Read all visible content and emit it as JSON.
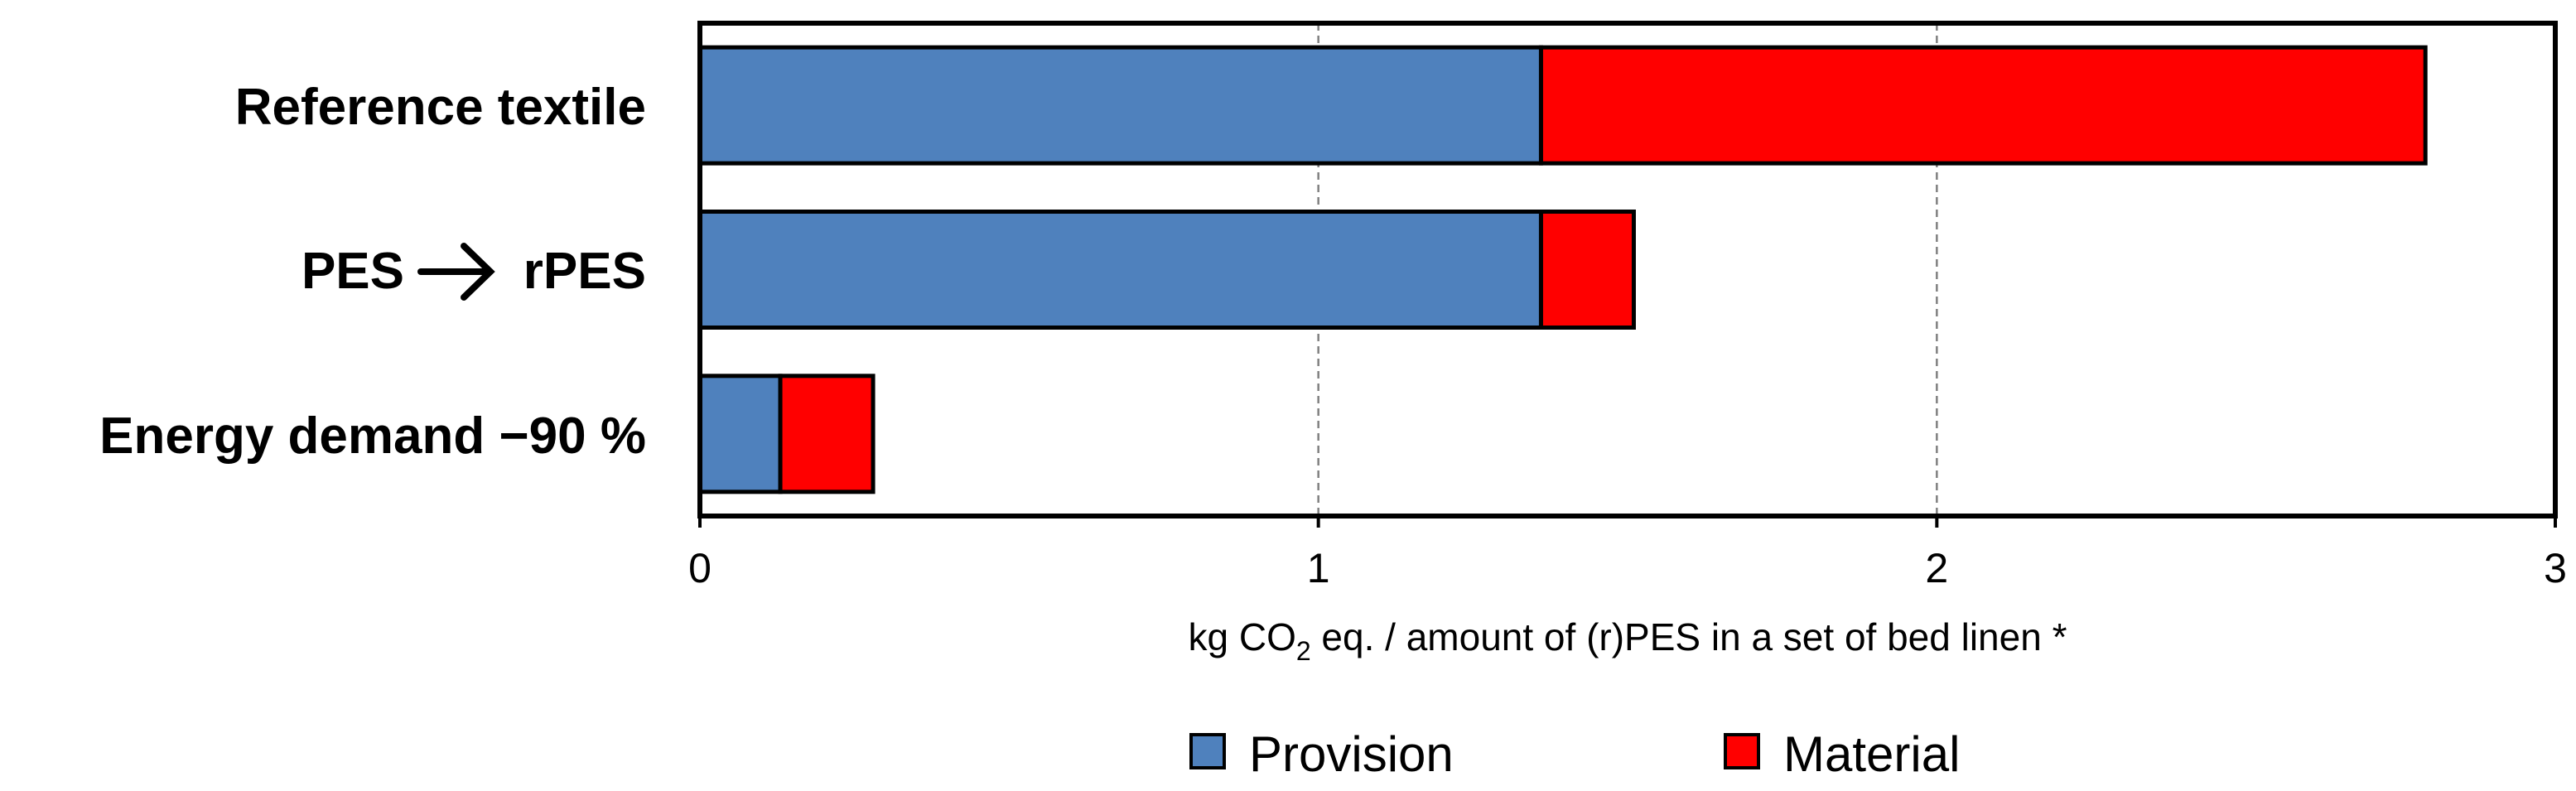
{
  "chart_data": {
    "type": "bar",
    "orientation": "horizontal",
    "stacked": true,
    "categories": [
      "Reference textile",
      "PES → rPES",
      "Energy demand −90 %"
    ],
    "category_parts": {
      "reference": "Reference textile",
      "pes_left": "PES",
      "pes_right": "rPES",
      "energy": "Energy demand −90 %"
    },
    "series": [
      {
        "name": "Provision",
        "color": "#4F81BD",
        "values": [
          1.36,
          1.36,
          0.13
        ]
      },
      {
        "name": "Material",
        "color": "#FF0000",
        "values": [
          1.43,
          0.15,
          0.15
        ]
      }
    ],
    "xlim": [
      0,
      3
    ],
    "xticks": [
      "0",
      "1",
      "2",
      "3"
    ],
    "xlabel_parts": {
      "pre": "kg CO",
      "sub": "2",
      "post": " eq. / amount of (r)PES in a set of bed linen *"
    },
    "grid": "vertical dashed",
    "legend": {
      "position": "bottom-center",
      "items": [
        "Provision",
        "Material"
      ]
    }
  }
}
